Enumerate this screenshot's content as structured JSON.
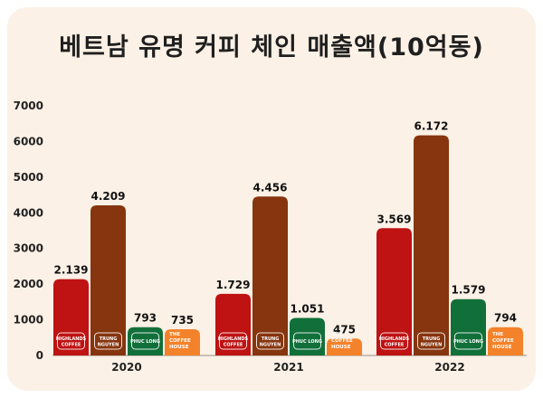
{
  "chart_data": {
    "type": "bar",
    "title": "베트남 유명 커피 체인 매출액(10억동)",
    "categories": [
      "2020",
      "2021",
      "2022"
    ],
    "ylim": [
      0,
      7000
    ],
    "yticks": [
      0,
      1000,
      2000,
      3000,
      4000,
      5000,
      6000,
      7000
    ],
    "grid": false,
    "legend": "none",
    "series": [
      {
        "brand_lines": [
          "HIGHLANDS",
          "COFFEE"
        ],
        "color": "#bf1213",
        "values": [
          2139,
          1729,
          3569
        ],
        "labels": [
          "2.139",
          "1.729",
          "3.569"
        ]
      },
      {
        "brand_lines": [
          "TRUNG",
          "NGUYEN"
        ],
        "color": "#86350e",
        "values": [
          4209,
          4456,
          6172
        ],
        "labels": [
          "4.209",
          "4.456",
          "6.172"
        ]
      },
      {
        "brand_lines": [
          "PHUC LONG"
        ],
        "color": "#11703a",
        "values": [
          793,
          1051,
          1579
        ],
        "labels": [
          "793",
          "1.051",
          "1.579"
        ]
      },
      {
        "brand_lines": [
          "THE",
          "COFFEE",
          "HOUSE"
        ],
        "color": "#f4822a",
        "values": [
          735,
          475,
          794
        ],
        "labels": [
          "735",
          "475",
          "794"
        ]
      }
    ]
  }
}
